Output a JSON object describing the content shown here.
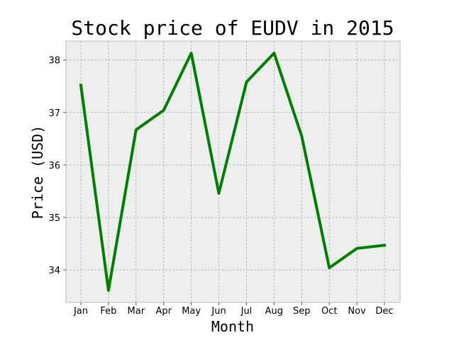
{
  "chart_data": {
    "type": "line",
    "title": "Stock price of EUDV in 2015",
    "xlabel": "Month",
    "ylabel": "Price (USD)",
    "categories": [
      "Jan",
      "Feb",
      "Mar",
      "Apr",
      "May",
      "Jun",
      "Jul",
      "Aug",
      "Sep",
      "Oct",
      "Nov",
      "Dec"
    ],
    "series": [
      {
        "values": [
          37.52,
          33.61,
          36.67,
          37.04,
          38.13,
          35.46,
          37.58,
          38.13,
          36.55,
          34.04,
          34.41,
          34.47
        ]
      }
    ],
    "yticks": [
      34,
      35,
      36,
      37,
      38
    ],
    "ylim": [
      33.38,
      38.36
    ],
    "grid": true,
    "colors": {
      "line": "#008000",
      "plot_bg": "#eeeeee"
    }
  }
}
